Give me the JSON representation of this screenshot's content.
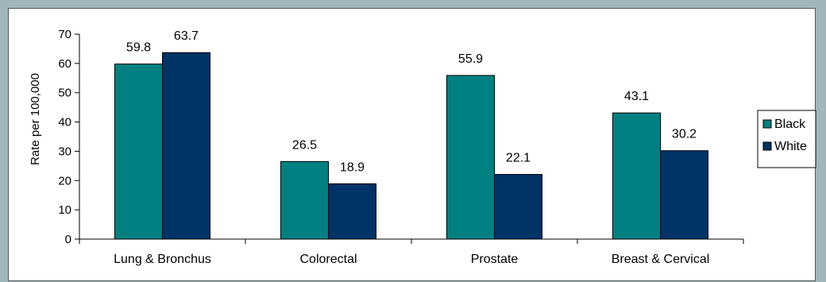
{
  "chart_data": {
    "type": "bar",
    "categories": [
      "Lung & Bronchus",
      "Colorectal",
      "Prostate",
      "Breast & Cervical"
    ],
    "series": [
      {
        "name": "Black",
        "values": [
          59.8,
          26.5,
          55.9,
          43.1
        ],
        "color": "#008080"
      },
      {
        "name": "White",
        "values": [
          63.7,
          18.9,
          22.1,
          30.2
        ],
        "color": "#003366"
      }
    ],
    "ylabel": "Rate per 100,000",
    "ylim": [
      0,
      70
    ],
    "yticks": [
      0,
      10,
      20,
      30,
      40,
      50,
      60,
      70
    ],
    "data_labels": true,
    "legend_position": "right"
  }
}
